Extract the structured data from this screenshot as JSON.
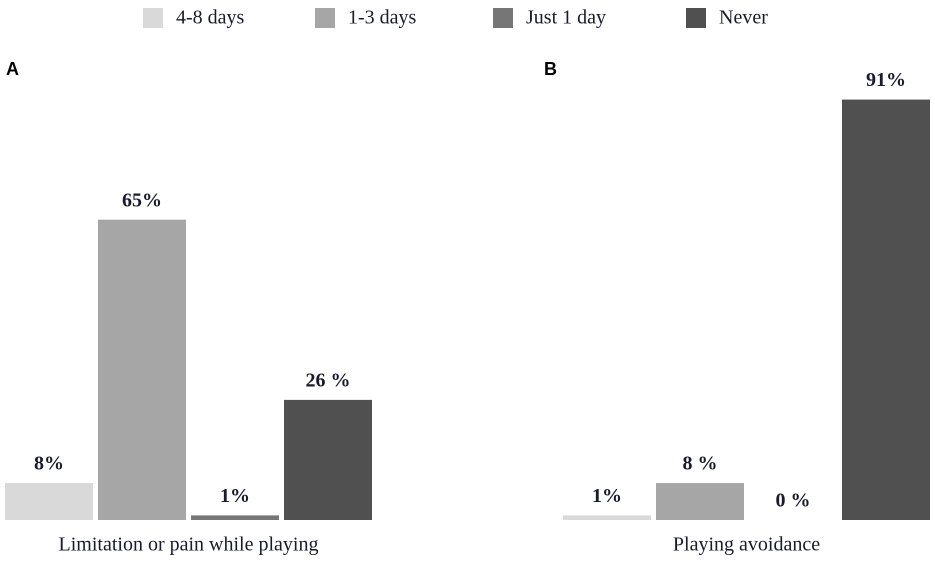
{
  "chart_data": {
    "type": "bar",
    "panel_labels": [
      "A",
      "B"
    ],
    "categories": [
      "Limitation or pain while playing",
      "Playing avoidance"
    ],
    "series": [
      {
        "name": "4-8 days",
        "color": "#d9d9d9",
        "values": [
          8,
          1
        ],
        "value_labels": [
          "8%",
          "1%"
        ]
      },
      {
        "name": "1-3 days",
        "color": "#a6a6a6",
        "values": [
          65,
          8
        ],
        "value_labels": [
          "65%",
          "8 %"
        ]
      },
      {
        "name": "Just 1 day",
        "color": "#767676",
        "values": [
          1,
          0
        ],
        "value_labels": [
          "1%",
          "0 %"
        ]
      },
      {
        "name": "Never",
        "color": "#505050",
        "values": [
          26,
          91
        ],
        "value_labels": [
          "26 %",
          "91%"
        ]
      }
    ]
  }
}
